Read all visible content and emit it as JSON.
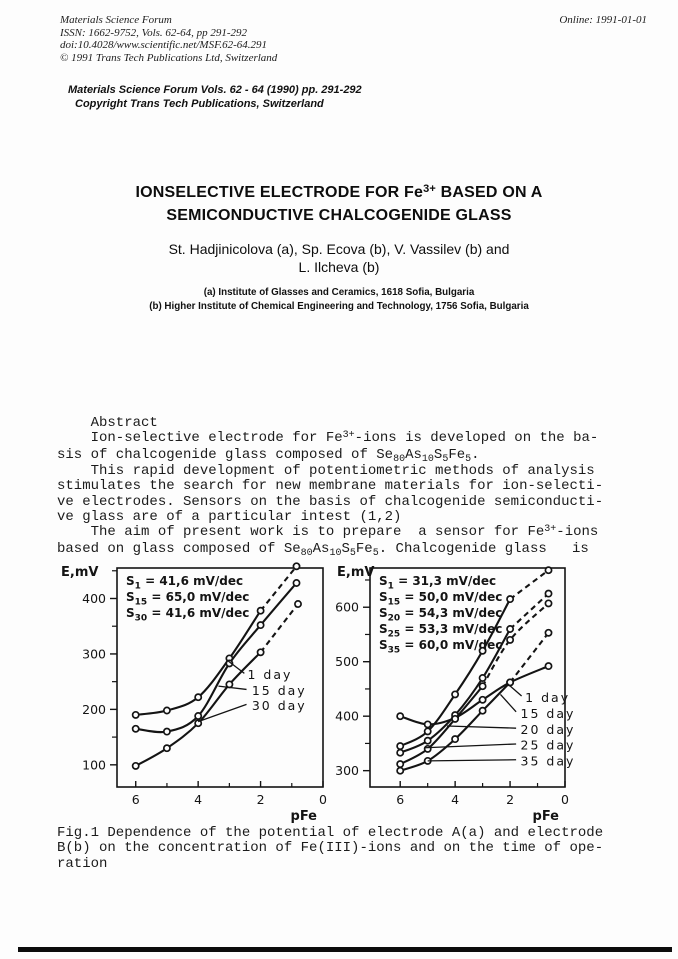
{
  "header": {
    "journal": "Materials Science Forum",
    "issn_line": "ISSN: 1662-9752, Vols. 62-64, pp 291-292",
    "doi_line": "doi:10.4028/www.scientific.net/MSF.62-64.291",
    "copyright_line": "© 1991 Trans Tech Publications Ltd, Switzerland",
    "online_date": "Online: 1991-01-01"
  },
  "imprint": {
    "line1": "Materials Science Forum Vols. 62 - 64 (1990) pp. 291-292",
    "line2": "Copyright Trans Tech Publications, Switzerland"
  },
  "article": {
    "title_line1_segments": [
      {
        "t": "IONSELECTIVE ELECTRODE FOR Fe"
      },
      {
        "t": "3+",
        "s": "sup"
      },
      {
        "t": " BASED ON A"
      }
    ],
    "title_line2": "SEMICONDUCTIVE CHALCOGENIDE GLASS",
    "authors_line1": "St. Hadjinicolova (a), Sp. Ecova (b), V. Vassilev (b) and",
    "authors_line2": "L. Ilcheva (b)",
    "affiliation_a": "(a) Institute of Glasses and Ceramics, 1618 Sofia, Bulgaria",
    "affiliation_b": "(b) Higher Institute of Chemical Engineering and Technology, 1756 Sofia, Bulgaria",
    "abstract_lines": [
      [
        {
          "t": "    Abstract"
        }
      ],
      [
        {
          "t": "    Ion-selective electrode for Fe"
        },
        {
          "t": "3+",
          "s": "sup"
        },
        {
          "t": "-ions is developed on the ba-"
        }
      ],
      [
        {
          "t": "sis of chalcogenide glass composed of Se"
        },
        {
          "t": "80",
          "s": "sub"
        },
        {
          "t": "As"
        },
        {
          "t": "10",
          "s": "sub"
        },
        {
          "t": "S"
        },
        {
          "t": "5",
          "s": "sub"
        },
        {
          "t": "Fe"
        },
        {
          "t": "5",
          "s": "sub"
        },
        {
          "t": "."
        }
      ],
      [
        {
          "t": "    This rapid development of potentiometric methods of analysis"
        }
      ],
      [
        {
          "t": "stimulates the search for new membrane materials for ion-selecti-"
        }
      ],
      [
        {
          "t": "ve electrodes. Sensors on the basis of chalcogenide semiconducti-"
        }
      ],
      [
        {
          "t": "ve glass are of a particular intest (1,2)"
        }
      ],
      [
        {
          "t": "    The aim of present work is to prepare  a sensor for Fe"
        },
        {
          "t": "3+",
          "s": "sup"
        },
        {
          "t": "-ions"
        }
      ],
      [
        {
          "t": "based on glass composed of Se"
        },
        {
          "t": "80",
          "s": "sub"
        },
        {
          "t": "As"
        },
        {
          "t": "10",
          "s": "sub"
        },
        {
          "t": "S"
        },
        {
          "t": "5",
          "s": "sub"
        },
        {
          "t": "Fe"
        },
        {
          "t": "5",
          "s": "sub"
        },
        {
          "t": ". Chalcogenide glass   is"
        }
      ]
    ],
    "caption_lines": [
      [
        {
          "t": "Fig.1 Dependence of the potential of electrode A(a) and electrode"
        }
      ],
      [
        {
          "t": "B(b) on the concentration of Fe(III)-ions and on the time of ope-"
        }
      ],
      [
        {
          "t": "ration"
        }
      ]
    ]
  },
  "chart_data": [
    {
      "type": "line",
      "name": "electrode-a",
      "ylabel": "E,mV",
      "xlabel": "pFe",
      "x_axis_reversed": true,
      "xlim": [
        6.6,
        0
      ],
      "ylim": [
        60,
        455
      ],
      "x_ticks_labeled": [
        6,
        4,
        2,
        0
      ],
      "x_ticks_minor": [
        5,
        3,
        1
      ],
      "y_ticks_labeled": [
        400,
        300,
        200,
        100
      ],
      "y_ticks_minor": [
        450,
        350,
        250,
        150
      ],
      "grid": false,
      "legend": [
        {
          "sub": "1",
          "text": "= 41,6 mV/dec"
        },
        {
          "sub": "15",
          "text": "= 65,0 mV/dec"
        },
        {
          "sub": "30",
          "text": "= 41,6 mV/dec"
        }
      ],
      "series": [
        {
          "name": "1 day",
          "x": [
            6,
            5,
            4,
            3,
            2,
            0.85
          ],
          "y": [
            190,
            198,
            222,
            292,
            378,
            458
          ],
          "dash_from": 4
        },
        {
          "name": "15 day",
          "x": [
            6,
            5,
            4,
            3,
            2,
            0.85
          ],
          "y": [
            165,
            160,
            188,
            283,
            352,
            428
          ],
          "dash_from": null
        },
        {
          "name": "30 day",
          "x": [
            6,
            5,
            4,
            3,
            2,
            0.8
          ],
          "y": [
            98,
            130,
            175,
            245,
            303,
            390
          ],
          "dash_from": 4
        }
      ],
      "annotations": [
        {
          "text": "1 day",
          "tx": 2.42,
          "ty": 262,
          "line": [
            [
              2.52,
              265
            ],
            [
              3.1,
              290
            ]
          ]
        },
        {
          "text": "15 day",
          "tx": 2.28,
          "ty": 233,
          "line": [
            [
              2.45,
              236
            ],
            [
              3.35,
              242
            ]
          ]
        },
        {
          "text": "30 day",
          "tx": 2.28,
          "ty": 206,
          "line": [
            [
              2.45,
              209
            ],
            [
              4.0,
              178
            ]
          ]
        }
      ]
    },
    {
      "type": "line",
      "name": "electrode-b",
      "ylabel": "E,mV",
      "xlabel": "pFe",
      "x_axis_reversed": true,
      "xlim": [
        7.1,
        0
      ],
      "ylim": [
        270,
        672
      ],
      "x_ticks_labeled": [
        6,
        4,
        2,
        0
      ],
      "x_ticks_minor": [
        5,
        3,
        1
      ],
      "y_ticks_labeled": [
        600,
        500,
        400,
        300
      ],
      "y_ticks_minor": [
        650,
        550,
        450,
        350
      ],
      "grid": false,
      "legend": [
        {
          "sub": "1",
          "text": "= 31,3 mV/dec"
        },
        {
          "sub": "15",
          "text": "= 50,0 mV/dec"
        },
        {
          "sub": "20",
          "text": "= 54,3 mV/dec"
        },
        {
          "sub": "25",
          "text": "= 53,3 mV/dec"
        },
        {
          "sub": "35",
          "text": "= 60,0 mV/dec"
        }
      ],
      "series": [
        {
          "name": "1 day",
          "x": [
            6,
            5,
            4,
            3,
            2,
            0.6
          ],
          "y": [
            400,
            385,
            397,
            430,
            462,
            492
          ],
          "dash_from": null
        },
        {
          "name": "15 day",
          "x": [
            6,
            5,
            4,
            3,
            2,
            0.6
          ],
          "y": [
            345,
            372,
            440,
            520,
            615,
            668
          ],
          "dash_from": 4
        },
        {
          "name": "20 day",
          "x": [
            6,
            5,
            4,
            3,
            2,
            0.6
          ],
          "y": [
            333,
            355,
            402,
            470,
            560,
            625
          ],
          "dash_from": 4
        },
        {
          "name": "25 day",
          "x": [
            6,
            5,
            4,
            3,
            2,
            0.6
          ],
          "y": [
            312,
            340,
            395,
            455,
            540,
            607
          ],
          "dash_from": 3
        },
        {
          "name": "35 day",
          "x": [
            6,
            5,
            4,
            3,
            2,
            0.6
          ],
          "y": [
            300,
            318,
            358,
            410,
            462,
            553
          ],
          "dash_from": 4
        }
      ],
      "annotations": [
        {
          "text": "1 day",
          "tx": 1.45,
          "ty": 433,
          "line": [
            [
              1.58,
              437
            ],
            [
              2.1,
              460
            ]
          ]
        },
        {
          "text": "15 day",
          "tx": 1.62,
          "ty": 404,
          "line": [
            [
              1.78,
              408
            ],
            [
              2.35,
              440
            ]
          ]
        },
        {
          "text": "20 day",
          "tx": 1.62,
          "ty": 375,
          "line": [
            [
              1.78,
              378
            ],
            [
              4.3,
              382
            ]
          ]
        },
        {
          "text": "25 day",
          "tx": 1.62,
          "ty": 346,
          "line": [
            [
              1.78,
              349
            ],
            [
              5.1,
              342
            ]
          ]
        },
        {
          "text": "35 day",
          "tx": 1.62,
          "ty": 317,
          "line": [
            [
              1.78,
              320
            ],
            [
              5.0,
              318
            ]
          ]
        }
      ]
    }
  ]
}
